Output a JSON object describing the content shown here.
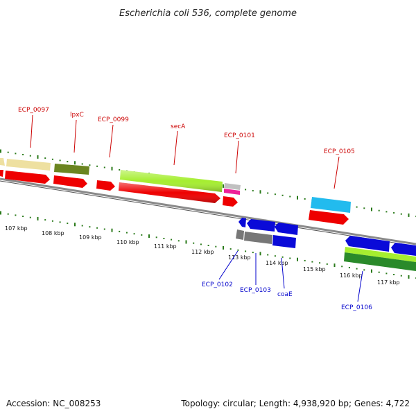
{
  "title": "Escherichia coli 536, complete genome",
  "accession": "Accession: NC_008253",
  "summary": "Topology: circular; Length: 4,938,920 bp; Genes: 4,722",
  "colors": {
    "backbone": "#8a8a8a",
    "tick": "#2a7a1a",
    "label_top": "#cc0000",
    "label_bottom": "#0000cc",
    "cds_red": "#ee0000",
    "gene_yellow": "#eee0a0",
    "gene_olive": "#6b8520",
    "gene_lime": "#a5ee30",
    "gene_cyan": "#22bbee",
    "gene_blue": "#0a0ad8",
    "gene_gray": "#777777",
    "gene_pink": "#ee2299",
    "gene_silver": "#c0c0c0",
    "gene_green": "#2a8a2a"
  },
  "scale": {
    "unit": "kbp",
    "labels": [
      "107 kbp",
      "108 kbp",
      "109 kbp",
      "110 kbp",
      "111 kbp",
      "112 kbp",
      "113 kbp",
      "114 kbp",
      "115 kbp",
      "116 kbp",
      "117 kbp"
    ]
  },
  "gene_labels": {
    "top": [
      "ECP_0097",
      "lpxC",
      "ECP_0099",
      "secA",
      "ECP_0101",
      "ECP_0105"
    ],
    "bottom": [
      "ECP_0102",
      "ECP_0103",
      "coaE",
      "ECP_0106"
    ]
  }
}
